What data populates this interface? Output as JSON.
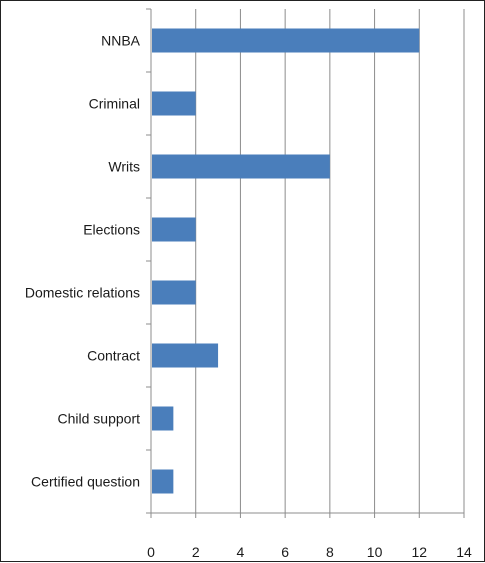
{
  "chart_data": {
    "type": "bar",
    "orientation": "horizontal",
    "title": "",
    "xlabel": "",
    "ylabel": "",
    "categories": [
      "NNBA",
      "Criminal",
      "Writs",
      "Elections",
      "Domestic relations",
      "Contract",
      "Child support",
      "Certified question"
    ],
    "values": [
      12,
      2,
      8,
      2,
      2,
      3,
      1,
      1
    ],
    "xlim": [
      0,
      14
    ],
    "x_ticks": [
      "0",
      "2",
      "4",
      "6",
      "8",
      "10",
      "12",
      "14"
    ],
    "grid": "vertical",
    "legend": "none",
    "bar_color": "#4a7ebb",
    "axis_color": "#8c8c8c",
    "grid_color": "#8c8c8c"
  }
}
